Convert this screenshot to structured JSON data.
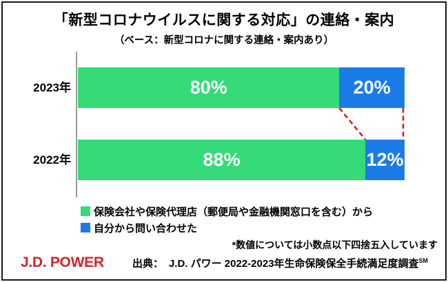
{
  "title": "「新型コロナウイルスに関する対応」の連絡・案内",
  "subtitle": "（ベース：新型コロナに関する連絡・案内あり）",
  "chart_data": {
    "type": "bar",
    "orientation": "horizontal",
    "stacked": true,
    "categories": [
      "2023年",
      "2022年"
    ],
    "series": [
      {
        "name": "保険会社や保険代理店（郵便局や金融機関窓口を含む）から",
        "values": [
          80,
          88
        ],
        "color": "#35db78",
        "label_color": "#ffffff"
      },
      {
        "name": "自分から問い合わせた",
        "values": [
          20,
          12
        ],
        "color": "#1b7ce8",
        "label_color": "#ffffff"
      }
    ],
    "value_suffix": "%",
    "xlim": [
      0,
      100
    ],
    "grid": false,
    "legend_position": "bottom-left",
    "connector_lines": {
      "style": "dashed",
      "color": "#d42020"
    }
  },
  "note": "*数値については小数点以下四捨五入しています",
  "source": {
    "label": "出典：",
    "text": "J.D. パワー 2022-2023年生命保険保全手続満足度調査",
    "superscript": "SM"
  },
  "logo": {
    "text": "J.D. POWER",
    "color": "#d2232a"
  },
  "colors": {
    "bar_green": "#35db78",
    "bar_blue": "#1b7ce8",
    "connector_red": "#d42020",
    "axis_gray": "#9a9a9a",
    "logo_red": "#d2232a",
    "border_black": "#161616"
  }
}
